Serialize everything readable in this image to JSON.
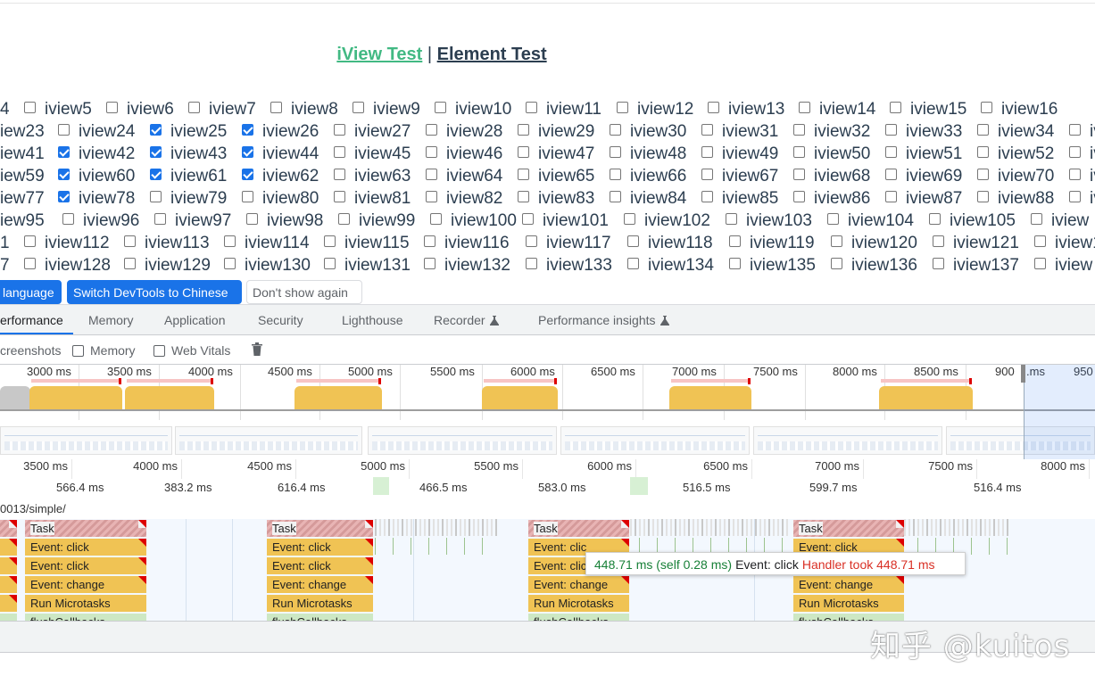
{
  "page": {
    "links": {
      "iview": "iView Test",
      "separator": "|",
      "element": "Element Test"
    }
  },
  "checkbox_rows": [
    {
      "lead": "4",
      "items": [
        {
          "label": "iview5",
          "on": false
        },
        {
          "label": "iview6",
          "on": false
        },
        {
          "label": "iview7",
          "on": false
        },
        {
          "label": "iview8",
          "on": false
        },
        {
          "label": "iview9",
          "on": false
        },
        {
          "label": "iview10",
          "on": false
        },
        {
          "label": "iview11",
          "on": false
        },
        {
          "label": "iview12",
          "on": false
        },
        {
          "label": "iview13",
          "on": false
        },
        {
          "label": "iview14",
          "on": false
        },
        {
          "label": "iview15",
          "on": false
        },
        {
          "label": "iview16",
          "on": false
        }
      ]
    },
    {
      "lead": "iew23",
      "items": [
        {
          "label": "iview24",
          "on": false
        },
        {
          "label": "iview25",
          "on": true
        },
        {
          "label": "iview26",
          "on": true
        },
        {
          "label": "iview27",
          "on": false
        },
        {
          "label": "iview28",
          "on": false
        },
        {
          "label": "iview29",
          "on": false
        },
        {
          "label": "iview30",
          "on": false
        },
        {
          "label": "iview31",
          "on": false
        },
        {
          "label": "iview32",
          "on": false
        },
        {
          "label": "iview33",
          "on": false
        },
        {
          "label": "iview34",
          "on": false
        },
        {
          "label": "iv",
          "on": false
        }
      ]
    },
    {
      "lead": "iew41",
      "items": [
        {
          "label": "iview42",
          "on": true
        },
        {
          "label": "iview43",
          "on": true
        },
        {
          "label": "iview44",
          "on": true
        },
        {
          "label": "iview45",
          "on": false
        },
        {
          "label": "iview46",
          "on": false
        },
        {
          "label": "iview47",
          "on": false
        },
        {
          "label": "iview48",
          "on": false
        },
        {
          "label": "iview49",
          "on": false
        },
        {
          "label": "iview50",
          "on": false
        },
        {
          "label": "iview51",
          "on": false
        },
        {
          "label": "iview52",
          "on": false
        },
        {
          "label": "iv",
          "on": false
        }
      ]
    },
    {
      "lead": "iew59",
      "items": [
        {
          "label": "iview60",
          "on": true
        },
        {
          "label": "iview61",
          "on": true
        },
        {
          "label": "iview62",
          "on": true
        },
        {
          "label": "iview63",
          "on": false
        },
        {
          "label": "iview64",
          "on": false
        },
        {
          "label": "iview65",
          "on": false
        },
        {
          "label": "iview66",
          "on": false
        },
        {
          "label": "iview67",
          "on": false
        },
        {
          "label": "iview68",
          "on": false
        },
        {
          "label": "iview69",
          "on": false
        },
        {
          "label": "iview70",
          "on": false
        },
        {
          "label": "iv",
          "on": false
        }
      ]
    },
    {
      "lead": "iew77",
      "items": [
        {
          "label": "iview78",
          "on": true
        },
        {
          "label": "iview79",
          "on": false
        },
        {
          "label": "iview80",
          "on": false
        },
        {
          "label": "iview81",
          "on": false
        },
        {
          "label": "iview82",
          "on": false
        },
        {
          "label": "iview83",
          "on": false
        },
        {
          "label": "iview84",
          "on": false
        },
        {
          "label": "iview85",
          "on": false
        },
        {
          "label": "iview86",
          "on": false
        },
        {
          "label": "iview87",
          "on": false
        },
        {
          "label": "iview88",
          "on": false
        },
        {
          "label": "iv",
          "on": false
        }
      ]
    },
    {
      "lead": "iew95",
      "items": [
        {
          "label": "iview96",
          "on": false
        },
        {
          "label": "iview97",
          "on": false
        },
        {
          "label": "iview98",
          "on": false
        },
        {
          "label": "iview99",
          "on": false
        },
        {
          "label": "iview100",
          "on": false
        },
        {
          "label": "iview101",
          "on": false
        },
        {
          "label": "iview102",
          "on": false
        },
        {
          "label": "iview103",
          "on": false
        },
        {
          "label": "iview104",
          "on": false
        },
        {
          "label": "iview105",
          "on": false
        },
        {
          "label": "iview",
          "on": false
        }
      ]
    },
    {
      "lead": "1",
      "items": [
        {
          "label": "iview112",
          "on": false
        },
        {
          "label": "iview113",
          "on": false
        },
        {
          "label": "iview114",
          "on": false
        },
        {
          "label": "iview115",
          "on": false
        },
        {
          "label": "iview116",
          "on": false
        },
        {
          "label": "iview117",
          "on": false
        },
        {
          "label": "iview118",
          "on": false
        },
        {
          "label": "iview119",
          "on": false
        },
        {
          "label": "iview120",
          "on": false
        },
        {
          "label": "iview121",
          "on": false
        },
        {
          "label": "iview1",
          "on": false
        }
      ]
    },
    {
      "lead": "7",
      "items": [
        {
          "label": "iview128",
          "on": false
        },
        {
          "label": "iview129",
          "on": false
        },
        {
          "label": "iview130",
          "on": false
        },
        {
          "label": "iview131",
          "on": false
        },
        {
          "label": "iview132",
          "on": false
        },
        {
          "label": "iview133",
          "on": false
        },
        {
          "label": "iview134",
          "on": false
        },
        {
          "label": "iview135",
          "on": false
        },
        {
          "label": "iview136",
          "on": false
        },
        {
          "label": "iview137",
          "on": false
        },
        {
          "label": "iview",
          "on": false
        }
      ]
    }
  ],
  "infobar": {
    "lang_btn": "language",
    "switch_btn": "Switch DevTools to Chinese",
    "dismiss_btn": "Don't show again"
  },
  "tabs": [
    {
      "label": "erformance",
      "active": true
    },
    {
      "label": "Memory"
    },
    {
      "label": "Application"
    },
    {
      "label": "Security"
    },
    {
      "label": "Lighthouse"
    },
    {
      "label": "Recorder",
      "experimental": true
    },
    {
      "label": "Performance insights",
      "experimental": true
    }
  ],
  "toolbar": {
    "screenshots": "creenshots",
    "memory": "Memory",
    "webvitals": "Web Vitals"
  },
  "overview_ticks": [
    "3000 ms",
    "3500 ms",
    "4000 ms",
    "4500 ms",
    "5000 ms",
    "5500 ms",
    "6000 ms",
    "6500 ms",
    "7000 ms",
    "7500 ms",
    "8000 ms",
    "8500 ms",
    "900",
    ".ms",
    "950"
  ],
  "ruler_ticks": [
    "3500 ms",
    "4000 ms",
    "4500 ms",
    "5000 ms",
    "5500 ms",
    "6000 ms",
    "6500 ms",
    "7000 ms",
    "7500 ms",
    "8000 ms"
  ],
  "interaction_durations": [
    "566.4 ms",
    "383.2 ms",
    "616.4 ms",
    "466.5 ms",
    "583.0 ms",
    "516.5 ms",
    "599.7 ms",
    "516.4 ms"
  ],
  "url_fragment": "0013/simple/",
  "flame": {
    "task": "Task",
    "click": "Event: click",
    "change": "Event: change",
    "micro": "Run Microtasks",
    "flush": "flushCallbacks",
    "click_cut": "Event: clic"
  },
  "tooltip": {
    "duration": "448.71 ms (self 0.28 ms)",
    "event": "Event: click",
    "warning": "Handler took 448.71 ms"
  },
  "watermark": "知乎 @kuitos",
  "colors": {
    "accent": "#1a73e8",
    "link_green": "#42b983",
    "cpu_scripting": "#f0c354",
    "task_red": "#d00"
  }
}
